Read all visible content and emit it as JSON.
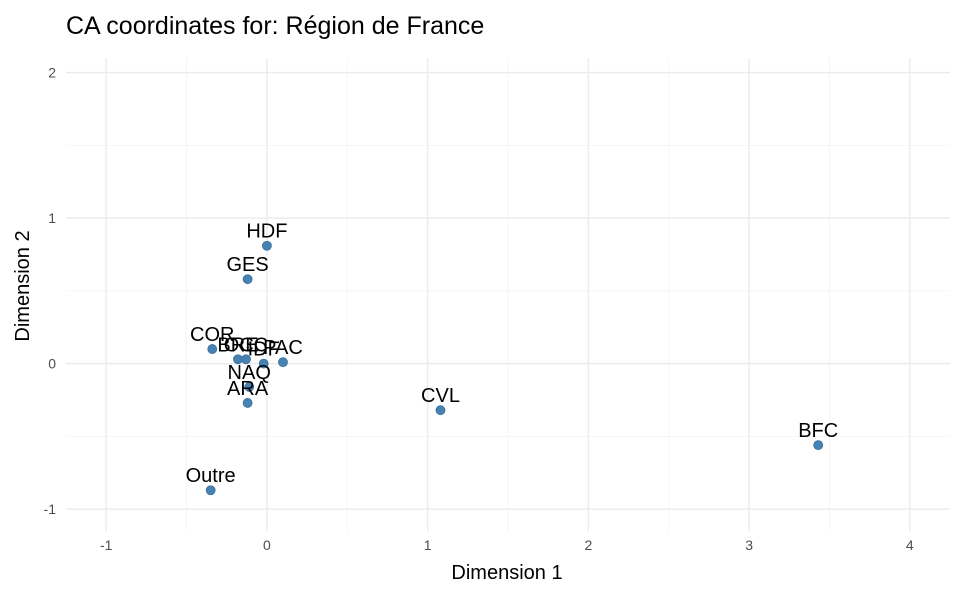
{
  "chart_data": {
    "type": "scatter",
    "title": "CA coordinates for: Région de France",
    "xlabel": "Dimension 1",
    "ylabel": "Dimension 2",
    "xlim": [
      -1.25,
      4.25
    ],
    "ylim": [
      -1.15,
      2.1
    ],
    "x_ticks": [
      -1,
      0,
      1,
      2,
      3,
      4
    ],
    "y_ticks": [
      -1,
      0,
      1,
      2
    ],
    "x_tick_labels": [
      "-1",
      "0",
      "1",
      "2",
      "3",
      "4"
    ],
    "y_tick_labels": [
      "-1",
      "0",
      "1",
      "2"
    ],
    "grid": true,
    "point_color": "#4682b4",
    "points": [
      {
        "label": "HDF",
        "x": 0.0,
        "y": 0.81
      },
      {
        "label": "GES",
        "x": -0.12,
        "y": 0.58
      },
      {
        "label": "COR",
        "x": -0.34,
        "y": 0.1
      },
      {
        "label": "BRE",
        "x": -0.18,
        "y": 0.03
      },
      {
        "label": "OCC",
        "x": -0.13,
        "y": 0.03
      },
      {
        "label": "IDF",
        "x": -0.02,
        "y": 0.0
      },
      {
        "label": "PAC",
        "x": 0.1,
        "y": 0.01
      },
      {
        "label": "NAQ",
        "x": -0.11,
        "y": -0.16
      },
      {
        "label": "ARA",
        "x": -0.12,
        "y": -0.27
      },
      {
        "label": "CVL",
        "x": 1.08,
        "y": -0.32
      },
      {
        "label": "BFC",
        "x": 3.43,
        "y": -0.56
      },
      {
        "label": "Outre",
        "x": -0.35,
        "y": -0.87
      }
    ]
  }
}
